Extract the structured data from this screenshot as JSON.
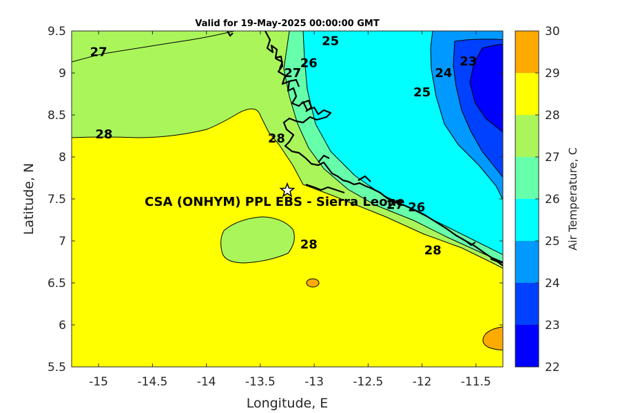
{
  "title": "Valid for 19-May-2025 00:00:00 GMT",
  "station": {
    "label": "CSA (ONHYM) PPL EBS  - Sierra Leone",
    "lon": -13.25,
    "lat": 7.6,
    "marker": "star-icon"
  },
  "chart_data": {
    "type": "heatmap",
    "xlabel": "Longitude, E",
    "ylabel": "Latitude, N",
    "xlim": [
      -15.25,
      -11.25
    ],
    "ylim": [
      5.5,
      9.5
    ],
    "xticks": [
      -15,
      -14.5,
      -14,
      -13.5,
      -13,
      -12.5,
      -12,
      -11.5
    ],
    "yticks": [
      5.5,
      6,
      6.5,
      7,
      7.5,
      8,
      8.5,
      9,
      9.5
    ],
    "xtick_labels": [
      "-15",
      "-14.5",
      "-14",
      "-13.5",
      "-13",
      "-12.5",
      "-12",
      "-11.5"
    ],
    "ytick_labels": [
      "5.5",
      "6",
      "6.5",
      "7",
      "7.5",
      "8",
      "8.5",
      "9",
      "9.5"
    ],
    "colorbar": {
      "label": "Air Temperature, C",
      "levels": [
        22,
        23,
        24,
        25,
        26,
        27,
        28,
        29,
        30
      ],
      "tick_labels": [
        "22",
        "23",
        "24",
        "25",
        "26",
        "27",
        "28",
        "29",
        "30"
      ],
      "colors": [
        "#0000ff",
        "#0040ff",
        "#0099ff",
        "#00ffff",
        "#66ffaa",
        "#aaf55a",
        "#ffff00",
        "#ffaa00",
        "#ff5500"
      ]
    },
    "contour_labels": [
      {
        "text": "27",
        "lon": -15.0,
        "lat": 9.25
      },
      {
        "text": "28",
        "lon": -14.95,
        "lat": 8.27
      },
      {
        "text": "25",
        "lon": -12.85,
        "lat": 9.38
      },
      {
        "text": "26",
        "lon": -13.05,
        "lat": 9.12
      },
      {
        "text": "27",
        "lon": -13.2,
        "lat": 9.0
      },
      {
        "text": "28",
        "lon": -13.35,
        "lat": 8.22
      },
      {
        "text": "25",
        "lon": -12.0,
        "lat": 8.77
      },
      {
        "text": "24",
        "lon": -11.8,
        "lat": 9.0
      },
      {
        "text": "23",
        "lon": -11.57,
        "lat": 9.14
      },
      {
        "text": "27",
        "lon": -12.25,
        "lat": 7.43
      },
      {
        "text": "26",
        "lon": -12.05,
        "lat": 7.4
      },
      {
        "text": "28",
        "lon": -13.05,
        "lat": 6.96
      },
      {
        "text": "28",
        "lon": -11.9,
        "lat": 6.89
      }
    ]
  }
}
